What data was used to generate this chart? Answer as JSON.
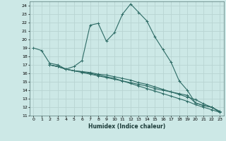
{
  "xlabel": "Humidex (Indice chaleur)",
  "bg_color": "#cce8e6",
  "grid_color": "#b8d4d2",
  "line_color": "#2d6b65",
  "xlim": [
    -0.5,
    23.5
  ],
  "ylim": [
    11,
    24.5
  ],
  "xticks": [
    0,
    1,
    2,
    3,
    4,
    5,
    6,
    7,
    8,
    9,
    10,
    11,
    12,
    13,
    14,
    15,
    16,
    17,
    18,
    19,
    20,
    21,
    22,
    23
  ],
  "yticks": [
    11,
    12,
    13,
    14,
    15,
    16,
    17,
    18,
    19,
    20,
    21,
    22,
    23,
    24
  ],
  "lines": [
    {
      "x": [
        0,
        1,
        2,
        3,
        4,
        5,
        6,
        7,
        8,
        9,
        10,
        11,
        12,
        13,
        14,
        15,
        16,
        17,
        18,
        19,
        20,
        21,
        22,
        23
      ],
      "y": [
        19.0,
        18.7,
        17.2,
        17.0,
        16.5,
        16.8,
        17.5,
        21.7,
        21.9,
        19.8,
        20.8,
        23.0,
        24.2,
        23.2,
        22.2,
        20.3,
        18.8,
        17.3,
        15.1,
        14.0,
        12.5,
        12.2,
        12.0,
        11.5
      ]
    },
    {
      "x": [
        2,
        3,
        4,
        5,
        6,
        7,
        8,
        9,
        10,
        11,
        12,
        13,
        14,
        15,
        16,
        17,
        18,
        19,
        20,
        21,
        22,
        23
      ],
      "y": [
        17.0,
        16.8,
        16.5,
        16.3,
        16.1,
        15.9,
        15.7,
        15.5,
        15.3,
        15.1,
        14.9,
        14.7,
        14.5,
        14.2,
        14.0,
        13.8,
        13.6,
        13.4,
        12.5,
        12.2,
        12.0,
        11.5
      ]
    },
    {
      "x": [
        2,
        3,
        4,
        5,
        6,
        7,
        8,
        9,
        10,
        11,
        12,
        13,
        14,
        15,
        16,
        17,
        18,
        19,
        20,
        21,
        22,
        23
      ],
      "y": [
        17.0,
        16.8,
        16.5,
        16.3,
        16.2,
        16.0,
        15.8,
        15.6,
        15.4,
        15.1,
        14.8,
        14.5,
        14.2,
        13.9,
        13.6,
        13.3,
        13.0,
        12.7,
        12.3,
        12.0,
        11.7,
        11.4
      ]
    },
    {
      "x": [
        2,
        3,
        4,
        5,
        6,
        7,
        8,
        9,
        10,
        11,
        12,
        13,
        14,
        15,
        16,
        17,
        18,
        19,
        20,
        21,
        22,
        23
      ],
      "y": [
        17.0,
        16.8,
        16.5,
        16.3,
        16.2,
        16.1,
        15.9,
        15.8,
        15.6,
        15.4,
        15.2,
        14.9,
        14.7,
        14.4,
        14.1,
        13.8,
        13.5,
        13.2,
        12.9,
        12.4,
        12.0,
        11.4
      ]
    }
  ]
}
